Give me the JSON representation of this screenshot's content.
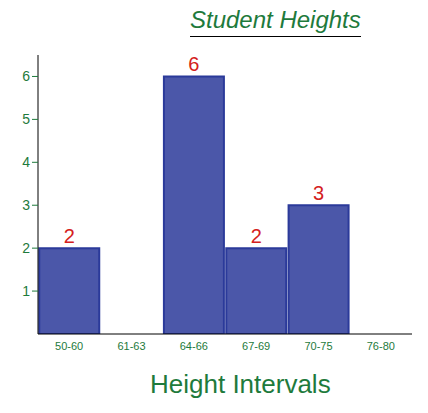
{
  "chart_data": {
    "type": "bar",
    "title": "Student Heights",
    "x_label": "Height Intervals",
    "categories": [
      "50-60",
      "61-63",
      "64-66",
      "67-69",
      "70-75",
      "76-80"
    ],
    "values": [
      2,
      0,
      6,
      2,
      3,
      0
    ],
    "color": "#2b3a9a",
    "ylim": [
      0,
      6.5
    ],
    "yticks": [
      1,
      2,
      3,
      4,
      5,
      6
    ],
    "data_labels": true,
    "grid": false
  }
}
